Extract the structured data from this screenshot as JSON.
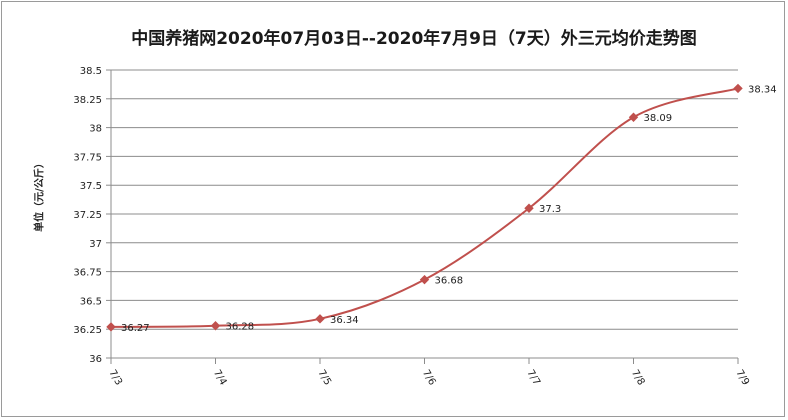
{
  "chart_data": {
    "type": "line",
    "title": "中国养猪网2020年07月03日--2020年7月9日（7天）外三元均价走势图",
    "ylabel": "单位（元/公斤）",
    "xlabel": "",
    "categories": [
      "7/3",
      "7/4",
      "7/5",
      "7/6",
      "7/7",
      "7/8",
      "7/9"
    ],
    "values": [
      36.27,
      36.28,
      36.34,
      36.68,
      37.3,
      38.09,
      38.34
    ],
    "data_labels": [
      "36.27",
      "36.28",
      "36.34",
      "36.68",
      "37.3",
      "38.09",
      "38.34"
    ],
    "ylim": [
      36,
      38.5
    ],
    "yticks": [
      "36",
      "36.25",
      "36.5",
      "36.75",
      "37",
      "37.25",
      "37.5",
      "37.75",
      "38",
      "38.25",
      "38.5"
    ],
    "grid": true,
    "legend": "none",
    "line_color": "#c0504d",
    "marker_color": "#c0504d",
    "marker": "diamond",
    "smooth": true
  }
}
